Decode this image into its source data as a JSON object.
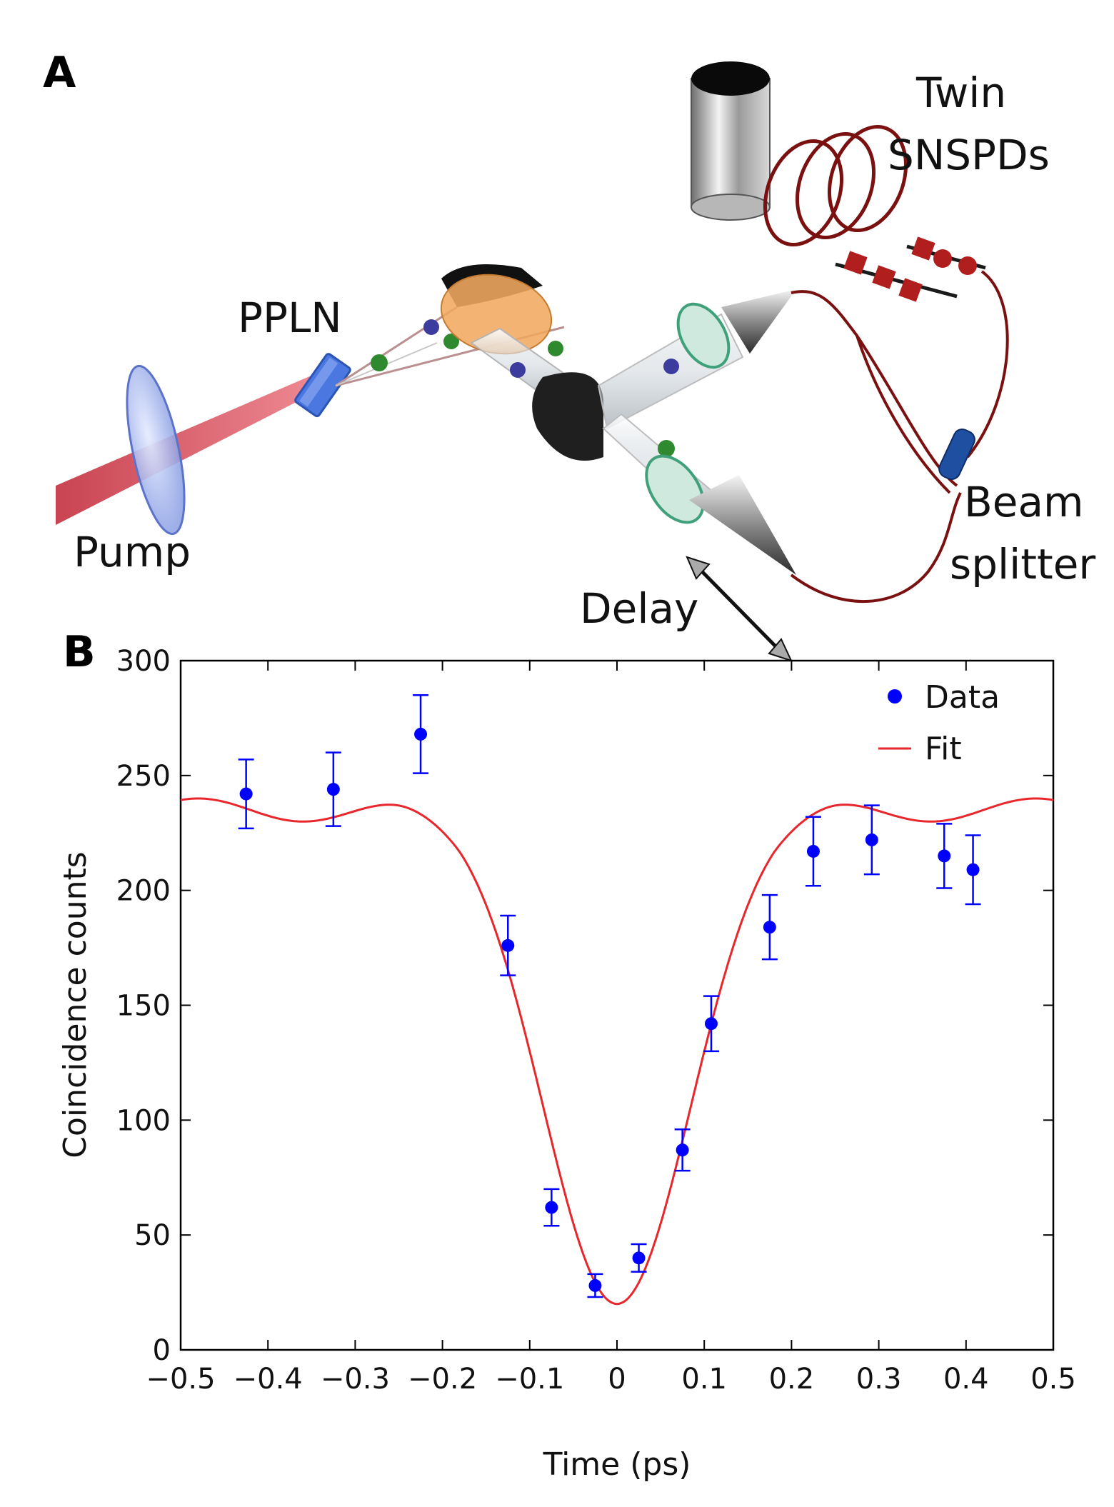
{
  "panel_a": {
    "letter": "A",
    "labels": {
      "pump": "Pump",
      "ppln": "PPLN",
      "twin": "Twin",
      "snspds": "SNSPDs",
      "beam": "Beam",
      "splitter": "splitter",
      "delay": "Delay"
    },
    "colors": {
      "pump_beam": "#d9545f",
      "photon_green": "#2f8a2f",
      "photon_blue": "#3c3c9e",
      "fiber": "#7a1010",
      "lens_orange": "#f0a860",
      "crystal_blue": "#4a78e0"
    }
  },
  "panel_b": {
    "letter": "B"
  },
  "chart_data": {
    "type": "scatter",
    "xlabel": "Time (ps)",
    "ylabel": "Coincidence counts",
    "xlim": [
      -0.5,
      0.5
    ],
    "ylim": [
      0,
      300
    ],
    "xticks": [
      -0.5,
      -0.4,
      -0.3,
      -0.2,
      -0.1,
      0,
      0.1,
      0.2,
      0.3,
      0.4,
      0.5
    ],
    "xtick_labels": [
      "−0.5",
      "−0.4",
      "−0.3",
      "−0.2",
      "−0.1",
      "0",
      "0.1",
      "0.2",
      "0.3",
      "0.4",
      "0.5"
    ],
    "yticks": [
      0,
      50,
      100,
      150,
      200,
      250,
      300
    ],
    "ytick_labels": [
      "0",
      "50",
      "100",
      "150",
      "200",
      "250",
      "300"
    ],
    "grid": false,
    "legend_position": "top-right",
    "series": [
      {
        "name": "Data",
        "kind": "points-with-error-bars",
        "color": "#0000ff",
        "x": [
          -0.425,
          -0.325,
          -0.225,
          -0.125,
          -0.075,
          -0.025,
          0.025,
          0.075,
          0.108,
          0.175,
          0.225,
          0.292,
          0.375,
          0.408
        ],
        "y": [
          242,
          244,
          268,
          176,
          62,
          28,
          40,
          87,
          142,
          184,
          217,
          222,
          215,
          209
        ],
        "yerr": [
          15,
          16,
          17,
          13,
          8,
          5,
          6,
          9,
          12,
          14,
          15,
          15,
          14,
          15
        ]
      },
      {
        "name": "Fit",
        "kind": "line",
        "color": "#e8262b",
        "model": "fitted dip curve",
        "params": {
          "baseline": 240,
          "min": 20,
          "width_ps": 0.085,
          "period_ps": 0.24,
          "ripple": 10
        }
      }
    ]
  }
}
